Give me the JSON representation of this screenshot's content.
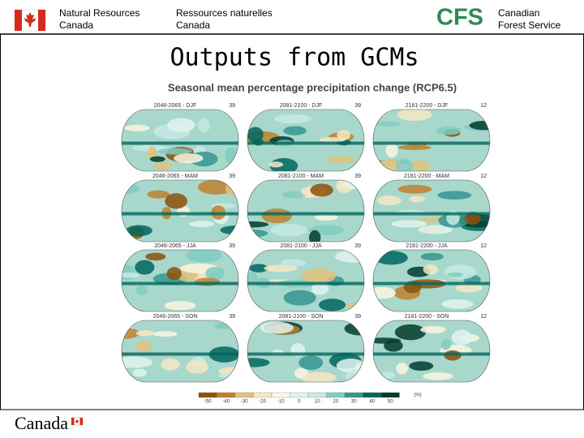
{
  "header": {
    "left_en": [
      "Natural Resources",
      "Canada"
    ],
    "left_fr": [
      "Ressources naturelles",
      "Canada"
    ],
    "logo": "CFS",
    "right": [
      "Canadian",
      "Forest Service"
    ]
  },
  "slide": {
    "title": "Outputs from GCMs",
    "figure": {
      "title": "Seasonal mean percentage precipitation change (RCP6.5)",
      "panels": [
        [
          {
            "label": "2046-2065 - DJF",
            "count": 39
          },
          {
            "label": "2081-2100 - DJF",
            "count": 39
          },
          {
            "label": "2181-2200 - DJF",
            "count": 12
          }
        ],
        [
          {
            "label": "2046-2065 - MAM",
            "count": 39
          },
          {
            "label": "2081-2100 - MAM",
            "count": 39
          },
          {
            "label": "2181-2200 - MAM",
            "count": 12
          }
        ],
        [
          {
            "label": "2046-2065 - JJA",
            "count": 39
          },
          {
            "label": "2081-2100 - JJA",
            "count": 39
          },
          {
            "label": "2181-2200 - JJA",
            "count": 12
          }
        ],
        [
          {
            "label": "2046-2065 - SON",
            "count": 39
          },
          {
            "label": "2081-2100 - SON",
            "count": 39
          },
          {
            "label": "2181-2200 - SON",
            "count": 12
          }
        ]
      ],
      "colorbar": {
        "labels": [
          -50,
          -40,
          -30,
          -20,
          -10,
          0,
          10,
          20,
          30,
          40,
          50
        ],
        "unit": "(%)"
      }
    }
  },
  "footer": {
    "wordmark": "Canada"
  }
}
